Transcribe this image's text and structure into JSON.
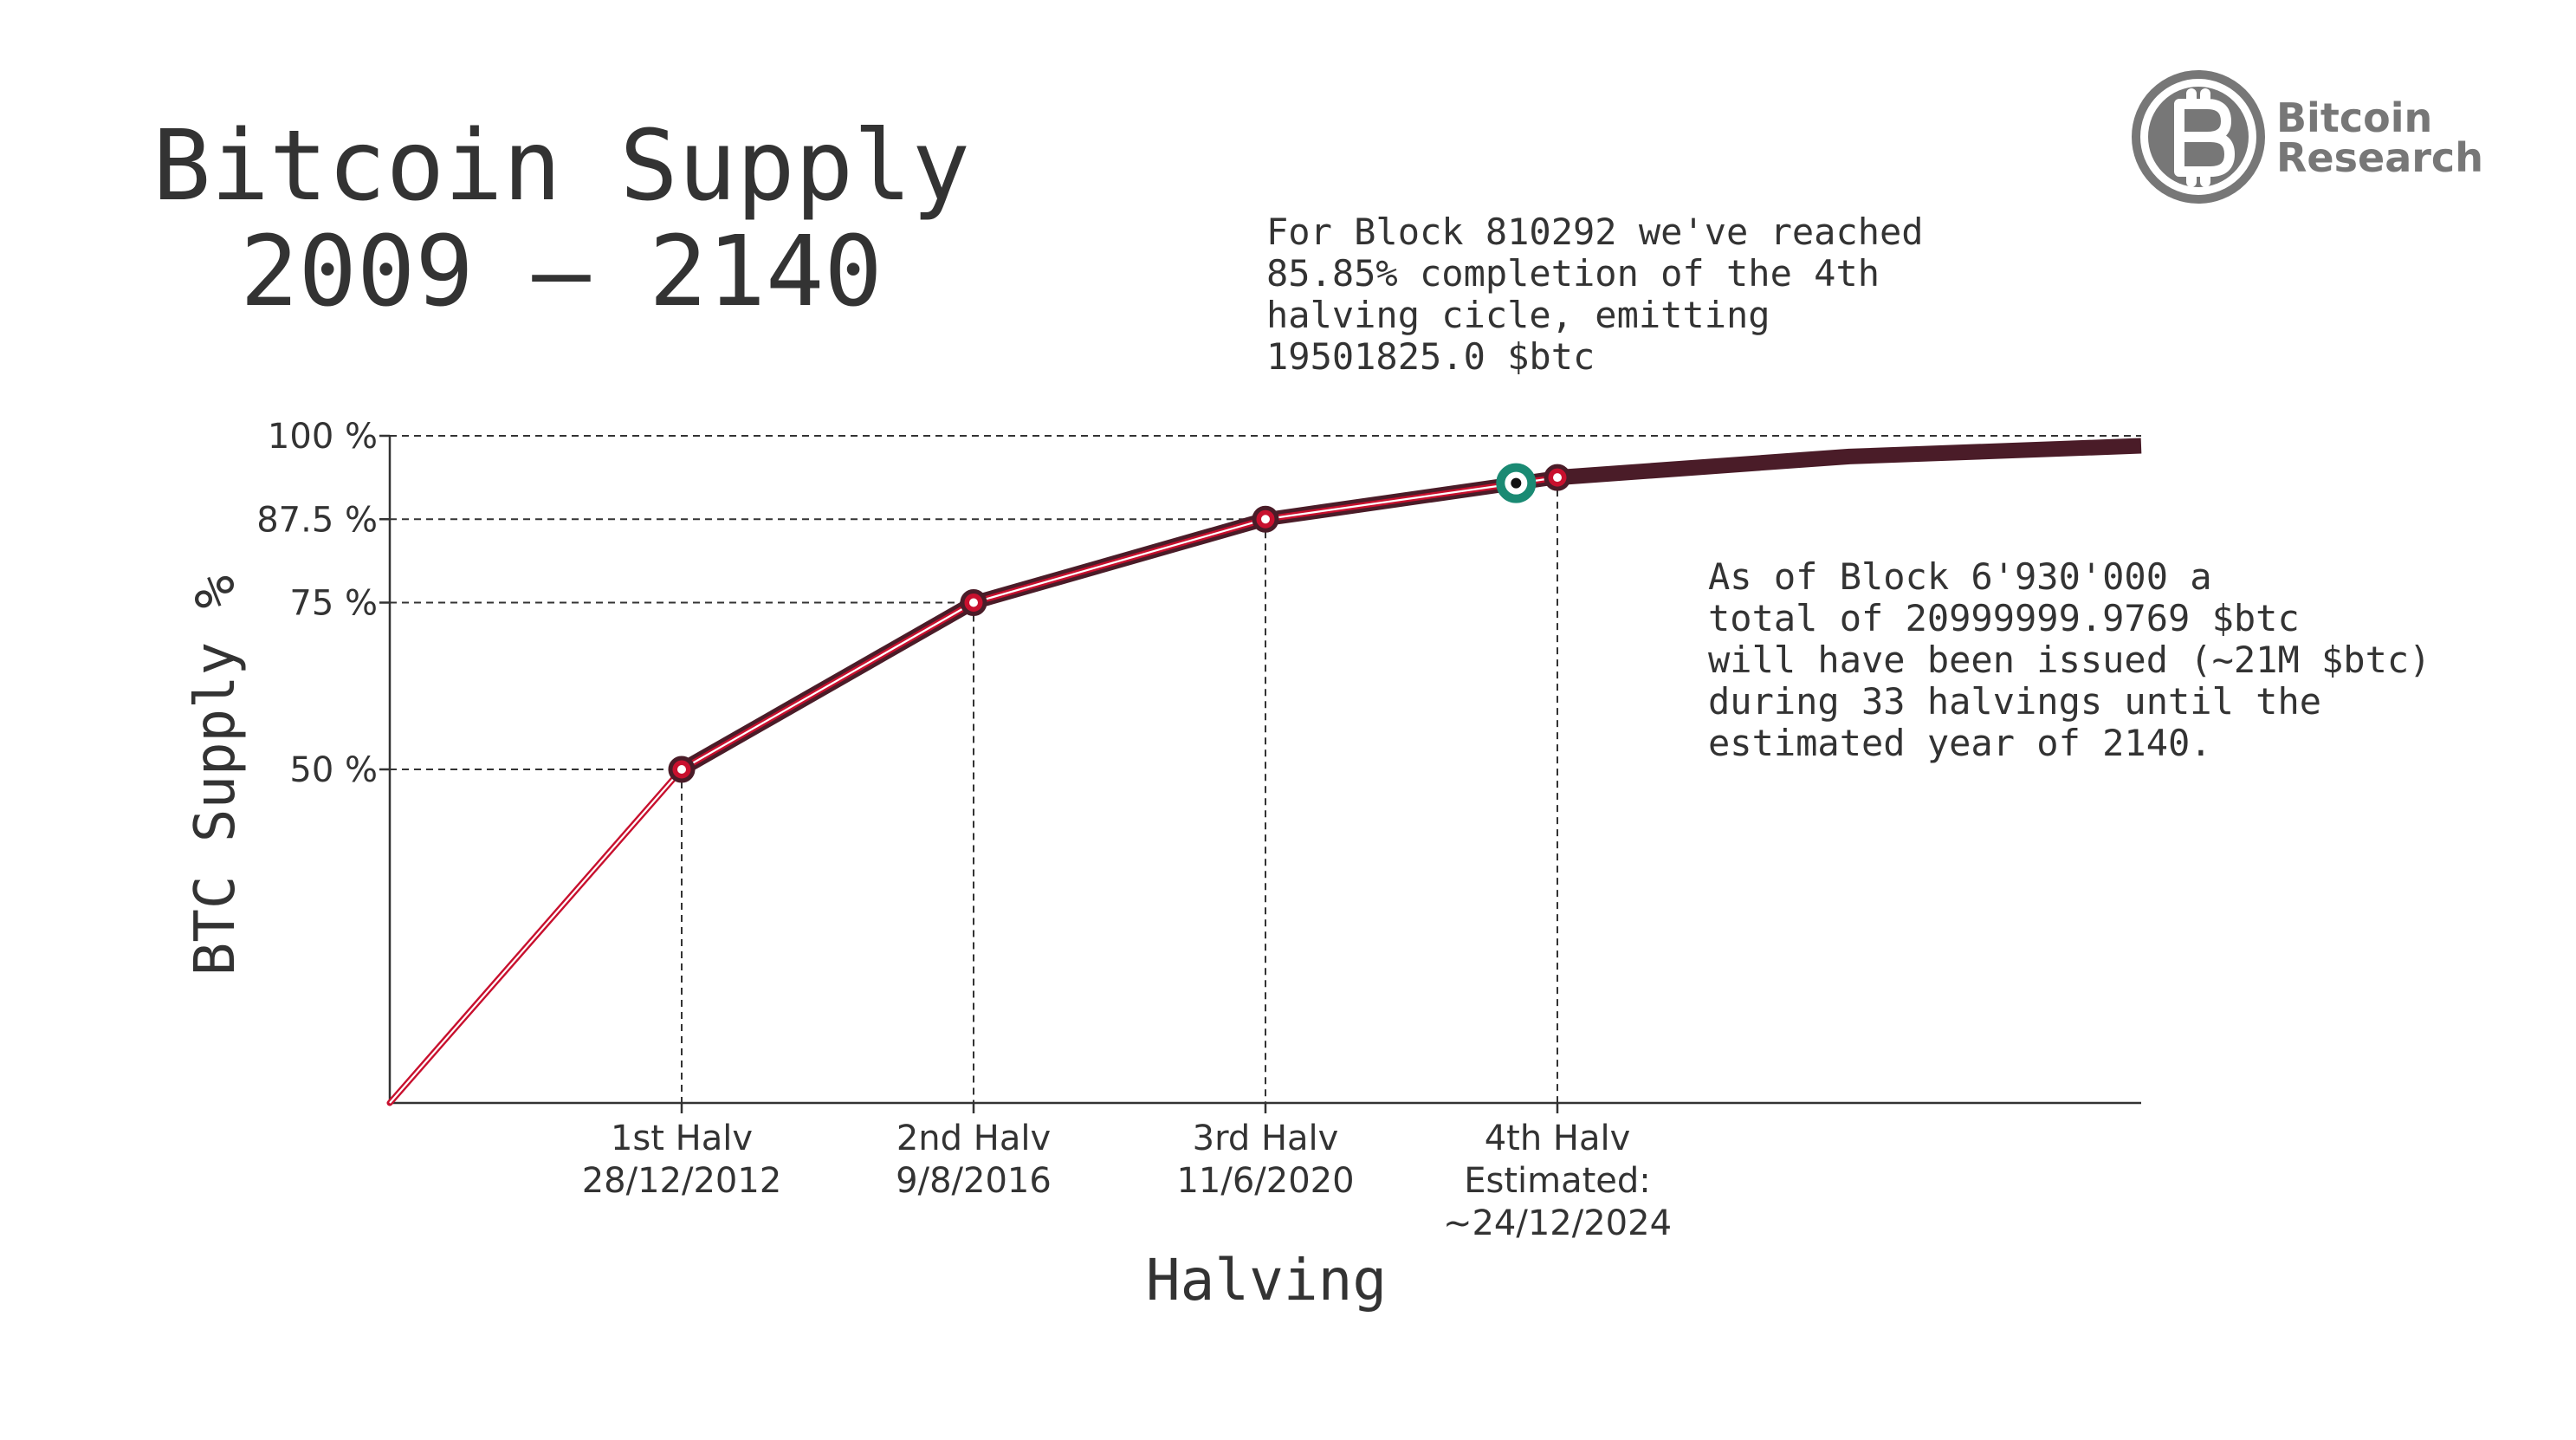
{
  "title_line1": "Bitcoin Supply",
  "title_line2": "2009 – 2140",
  "logo": {
    "line1": "Bitcoin",
    "line2": "Research",
    "icon": "bitcoin-research-logo-icon",
    "color": "#777777"
  },
  "annotation_top": [
    "For Block 810292 we've reached",
    "85.85% completion of the 4th",
    "halving cicle, emitting",
    "19501825.0 $btc"
  ],
  "annotation_right": [
    "As of Block 6'930'000 a",
    "total of 20999999.9769 $btc",
    "will have been issued (~21M $btc)",
    "during 33 halvings until the",
    "estimated year of 2140."
  ],
  "colors": {
    "line_outer": "#4a1c28",
    "line_inner": "#ffffff",
    "line_red": "#c8102e",
    "current_marker": "#1a8a73",
    "text": "#333333"
  },
  "chart_data": {
    "type": "line",
    "xlabel": "Halving",
    "ylabel": "BTC Supply %",
    "ylim": [
      0,
      100
    ],
    "xlim": [
      0,
      6
    ],
    "y_ticks": [
      {
        "value": 50,
        "label": "50 %"
      },
      {
        "value": 75,
        "label": "75 %"
      },
      {
        "value": 87.5,
        "label": "87.5 %"
      },
      {
        "value": 100,
        "label": "100 %"
      }
    ],
    "x_ticks": [
      {
        "value": 1,
        "label_lines": [
          "1st Halv",
          "28/12/2012"
        ]
      },
      {
        "value": 2,
        "label_lines": [
          "2nd Halv",
          "9/8/2016"
        ]
      },
      {
        "value": 3,
        "label_lines": [
          "3rd Halv",
          "11/6/2020"
        ]
      },
      {
        "value": 4,
        "label_lines": [
          "4th Halv",
          "Estimated:",
          "~24/12/2024"
        ]
      }
    ],
    "halving_points": [
      {
        "x": 1,
        "y": 50
      },
      {
        "x": 2,
        "y": 75
      },
      {
        "x": 3,
        "y": 87.5
      },
      {
        "x": 4,
        "y": 93.75
      }
    ],
    "current_point": {
      "x": 3.8585,
      "y": 92.9
    },
    "supply_curve": [
      {
        "x": 0,
        "y": 0
      },
      {
        "x": 1,
        "y": 50
      },
      {
        "x": 2,
        "y": 75
      },
      {
        "x": 3,
        "y": 87.5
      },
      {
        "x": 4,
        "y": 93.75
      },
      {
        "x": 5,
        "y": 96.9
      },
      {
        "x": 6,
        "y": 98.5
      }
    ],
    "grid": "dashed guides at halvings",
    "legend": "none"
  }
}
